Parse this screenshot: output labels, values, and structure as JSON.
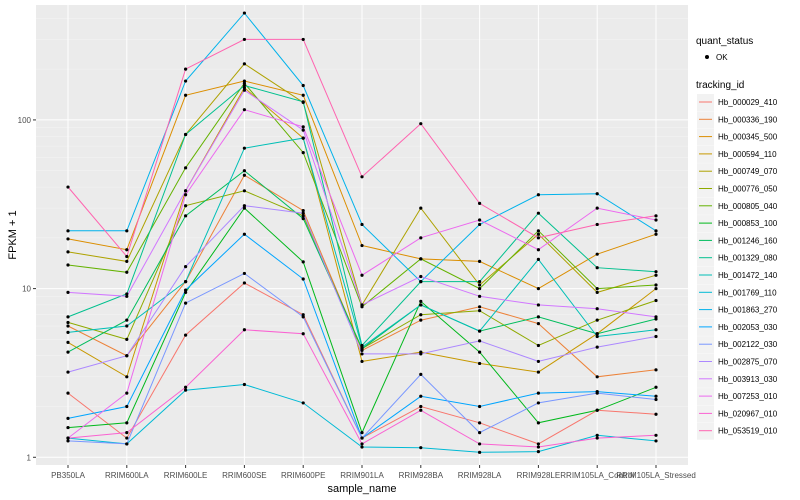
{
  "chart_data": {
    "type": "line",
    "xlabel": "sample_name",
    "ylabel": "FPKM + 1",
    "y_scale": "log10",
    "ylim": [
      0.9,
      480
    ],
    "y_ticks": [
      1,
      10,
      100
    ],
    "y_tick_labels": [
      "1",
      "10",
      "100"
    ],
    "grid": true,
    "legend_position": "right",
    "categories": [
      "PB350LA",
      "RRIM600LA",
      "RRIM600LE",
      "RRIM600SE",
      "RRIM600PE",
      "RRIM901LA",
      "RRIM928BA",
      "RRIM928LA",
      "RRIM928LE",
      "RRIM105LA_Control",
      "RRIM105LA_Stressed"
    ],
    "quant_status": {
      "title": "quant_status",
      "entries": [
        "OK"
      ]
    },
    "legend_title": "tracking_id",
    "series": [
      {
        "name": "Hb_000029_410",
        "color": "#F8766D",
        "values": [
          2.4,
          1.3,
          5.3,
          10.8,
          7.0,
          1.3,
          2.0,
          1.6,
          1.2,
          1.9,
          1.8
        ]
      },
      {
        "name": "Hb_000336_190",
        "color": "#EC8239",
        "values": [
          6.0,
          4.0,
          11.0,
          47,
          29,
          4.3,
          6.5,
          7.8,
          6.2,
          3.0,
          3.3
        ]
      },
      {
        "name": "Hb_000345_500",
        "color": "#DB8E00",
        "values": [
          19.7,
          17,
          140,
          170,
          140,
          18,
          15,
          14.5,
          10,
          16,
          21
        ]
      },
      {
        "name": "Hb_000594_110",
        "color": "#C79800",
        "values": [
          4.8,
          3.0,
          38,
          155,
          78,
          3.7,
          4.2,
          3.6,
          3.2,
          5.4,
          10
        ]
      },
      {
        "name": "Hb_000749_070",
        "color": "#AEA200",
        "values": [
          16.5,
          14.5,
          82,
          215,
          127,
          8.0,
          30,
          10.5,
          21,
          9.5,
          12
        ]
      },
      {
        "name": "Hb_000776_050",
        "color": "#8FAA00",
        "values": [
          6.3,
          5.0,
          31,
          38,
          27,
          4.4,
          7.0,
          7.4,
          4.6,
          6.5,
          8.5
        ]
      },
      {
        "name": "Hb_000805_040",
        "color": "#64B200",
        "values": [
          13.8,
          12.5,
          52,
          165,
          64,
          7.8,
          15,
          10,
          22,
          10,
          10.5
        ]
      },
      {
        "name": "Hb_000853_100",
        "color": "#00B81B",
        "values": [
          1.5,
          1.6,
          9.5,
          30,
          14.4,
          1.4,
          8.4,
          4.2,
          1.6,
          1.9,
          2.6
        ]
      },
      {
        "name": "Hb_001246_160",
        "color": "#00BD5C",
        "values": [
          4.2,
          6.5,
          27,
          50,
          26,
          4.4,
          8.0,
          5.6,
          6.8,
          5.4,
          6.6
        ]
      },
      {
        "name": "Hb_001329_080",
        "color": "#00C08E",
        "values": [
          6.8,
          9.3,
          82,
          160,
          128,
          4.6,
          11,
          11,
          28,
          13.3,
          12.6
        ]
      },
      {
        "name": "Hb_001472_140",
        "color": "#00BFB6",
        "values": [
          5.5,
          6.0,
          11,
          68,
          78,
          4.5,
          8.0,
          5.6,
          14.9,
          5.2,
          5.7
        ]
      },
      {
        "name": "Hb_001769_110",
        "color": "#00BAD5",
        "values": [
          1.3,
          1.2,
          2.5,
          2.7,
          2.1,
          1.15,
          1.14,
          1.07,
          1.08,
          1.35,
          1.25
        ]
      },
      {
        "name": "Hb_001863_270",
        "color": "#00B2EB",
        "values": [
          22,
          22,
          170,
          430,
          160,
          24,
          11,
          24,
          36,
          36.5,
          22
        ]
      },
      {
        "name": "Hb_002053_030",
        "color": "#00A5FF",
        "values": [
          1.7,
          2.0,
          9.8,
          21,
          11.4,
          1.3,
          2.3,
          2.0,
          2.4,
          2.45,
          2.3
        ]
      },
      {
        "name": "Hb_002122_030",
        "color": "#7997FF",
        "values": [
          1.25,
          1.2,
          8.2,
          12.3,
          6.8,
          1.3,
          3.1,
          1.4,
          2.1,
          2.4,
          2.2
        ]
      },
      {
        "name": "Hb_002875_070",
        "color": "#AC88FF",
        "values": [
          3.2,
          4.0,
          13.5,
          31,
          28,
          4.1,
          4.1,
          4.9,
          3.7,
          4.5,
          5.2
        ]
      },
      {
        "name": "Hb_003913_030",
        "color": "#D177FF",
        "values": [
          9.5,
          9.0,
          38,
          150,
          87,
          8.0,
          11.8,
          9.0,
          8.0,
          7.6,
          6.8
        ]
      },
      {
        "name": "Hb_007253_010",
        "color": "#EC69EF",
        "values": [
          1.3,
          2.4,
          36,
          115,
          91,
          12.0,
          20,
          25.5,
          17,
          30,
          25.5
        ]
      },
      {
        "name": "Hb_020967_010",
        "color": "#FA62D2",
        "values": [
          1.3,
          1.4,
          2.6,
          5.7,
          5.4,
          1.2,
          1.9,
          1.2,
          1.15,
          1.3,
          1.35
        ]
      },
      {
        "name": "Hb_053519_010",
        "color": "#FF64B0",
        "values": [
          40,
          15.5,
          200,
          300,
          300,
          46,
          95,
          32,
          20,
          24,
          27
        ]
      }
    ]
  }
}
